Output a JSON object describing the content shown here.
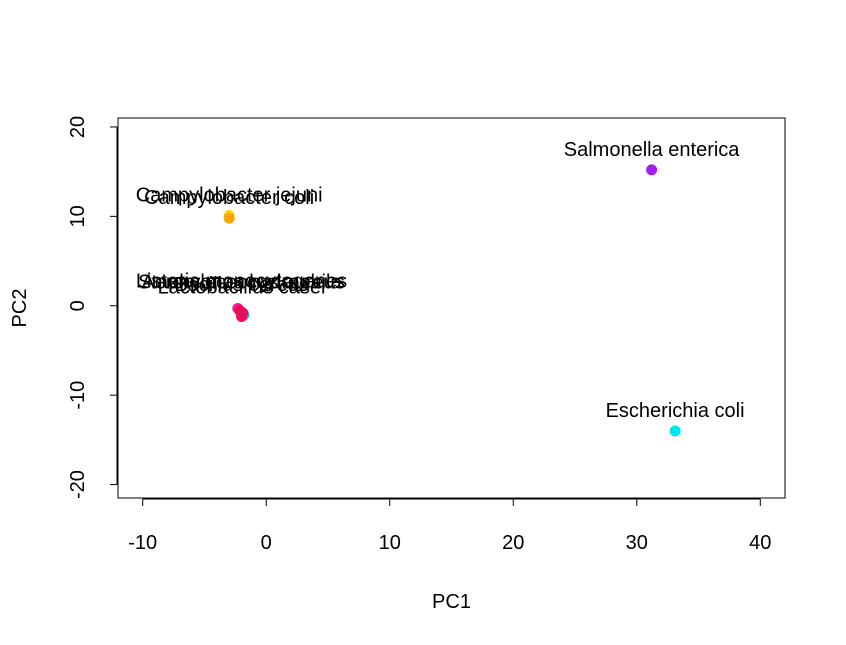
{
  "chart_data": {
    "type": "scatter",
    "xlabel": "PC1",
    "ylabel": "PC2",
    "xlim": [
      -12,
      42
    ],
    "ylim": [
      -21.5,
      21
    ],
    "xticks": [
      -10,
      0,
      10,
      20,
      30,
      40
    ],
    "yticks": [
      -20,
      -10,
      0,
      10,
      20
    ],
    "grid": false,
    "points": [
      {
        "label": "Salmonella enterica",
        "x": 31.2,
        "y": 15.2,
        "color": "#A020F0"
      },
      {
        "label": "Escherichia coli",
        "x": 33.1,
        "y": -14.0,
        "color": "#00E5EE"
      },
      {
        "label": "Campylobacter jejuni",
        "x": -3.0,
        "y": 10.1,
        "color": "#FFD700"
      },
      {
        "label": "Campylobacter coli",
        "x": -3.0,
        "y": 9.8,
        "color": "#FFA500"
      },
      {
        "label": "",
        "x": -2.3,
        "y": -0.3,
        "color": "#FF1493"
      },
      {
        "label": "",
        "x": -2.1,
        "y": -0.6,
        "color": "#DC143C"
      },
      {
        "label": "",
        "x": -1.8,
        "y": -1.0,
        "color": "#00CED1"
      },
      {
        "label": "",
        "x": -2.0,
        "y": -1.2,
        "color": "#FF0066"
      },
      {
        "label": "",
        "x": -1.9,
        "y": -0.8,
        "color": "#E0115F"
      }
    ],
    "overlap_labels": [
      {
        "text": "Listeria monocytogenes",
        "x": -2.0,
        "y": 1.6
      },
      {
        "text": "Staphylococcus aureus",
        "x": -2.0,
        "y": 1.5
      },
      {
        "text": "Aeromonas hydrophila",
        "x": -2.0,
        "y": 1.5
      },
      {
        "text": "Lactobacillus casei",
        "x": -2.0,
        "y": 0.9
      },
      {
        "text": "Bacillus cereus",
        "x": -2.0,
        "y": 1.2
      }
    ]
  }
}
